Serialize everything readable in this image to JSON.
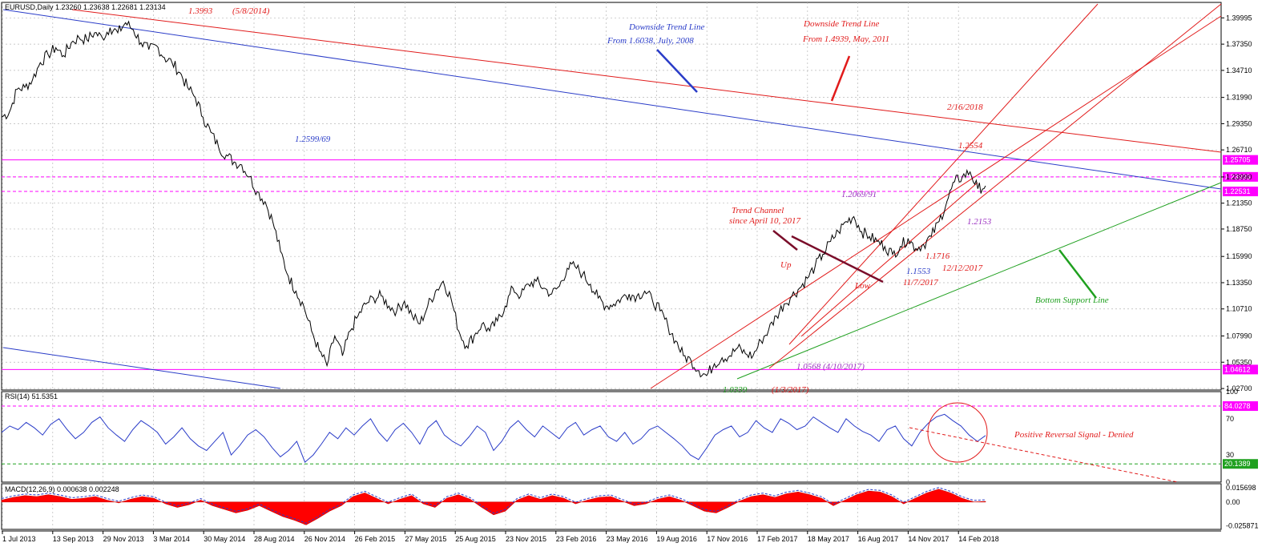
{
  "chart_data": [
    {
      "type": "line",
      "panel": "price",
      "header": "EURUSD,Daily  1.23260 1.23638 1.22681 1.23134",
      "ylim": [
        1.0255,
        1.4155
      ],
      "y_ticks": [
        "1.39995",
        "1.37350",
        "1.34710",
        "1.31990",
        "1.29350",
        "1.26710",
        "1.23990",
        "1.21350",
        "1.18750",
        "1.15990",
        "1.13350",
        "1.10710",
        "1.07990",
        "1.05350",
        "1.02700"
      ],
      "x_ticks": [
        "1 Jul 2013",
        "13 Sep 2013",
        "29 Nov 2013",
        "3 Mar 2014",
        "30 May 2014",
        "28 Aug 2014",
        "26 Nov 2014",
        "26 Feb 2015",
        "27 May 2015",
        "25 Aug 2015",
        "23 Nov 2015",
        "23 Feb 2016",
        "23 May 2016",
        "19 Aug 2016",
        "17 Nov 2016",
        "17 Feb 2017",
        "18 May 2017",
        "16 Aug 2017",
        "14 Nov 2017",
        "14 Feb 2018"
      ],
      "series": [
        {
          "values": [
            1.3,
            1.305,
            1.328,
            1.33,
            1.338,
            1.355,
            1.363,
            1.37,
            1.362,
            1.375,
            1.38,
            1.378,
            1.385,
            1.38,
            1.39,
            1.385,
            1.395,
            1.388,
            1.375,
            1.368,
            1.372,
            1.36,
            1.355,
            1.345,
            1.33,
            1.32,
            1.3,
            1.285,
            1.27,
            1.262,
            1.255,
            1.252,
            1.24,
            1.225,
            1.215,
            1.195,
            1.165,
            1.14,
            1.125,
            1.11,
            1.085,
            1.065,
            1.05,
            1.08,
            1.06,
            1.085,
            1.1,
            1.112,
            1.118,
            1.12,
            1.11,
            1.105,
            1.115,
            1.1,
            1.092,
            1.11,
            1.125,
            1.135,
            1.118,
            1.085,
            1.07,
            1.08,
            1.092,
            1.085,
            1.095,
            1.11,
            1.128,
            1.12,
            1.132,
            1.135,
            1.128,
            1.122,
            1.13,
            1.148,
            1.15,
            1.142,
            1.132,
            1.118,
            1.11,
            1.112,
            1.118,
            1.122,
            1.12,
            1.125,
            1.116,
            1.105,
            1.09,
            1.075,
            1.06,
            1.055,
            1.045,
            1.04,
            1.052,
            1.058,
            1.06,
            1.068,
            1.062,
            1.06,
            1.075,
            1.086,
            1.1,
            1.112,
            1.12,
            1.128,
            1.138,
            1.15,
            1.162,
            1.175,
            1.185,
            1.195,
            1.2,
            1.185,
            1.18,
            1.175,
            1.17,
            1.162,
            1.17,
            1.178,
            1.168,
            1.172,
            1.18,
            1.195,
            1.215,
            1.235,
            1.24,
            1.245,
            1.228,
            1.231
          ]
        },
        {
          "name": "",
          "values": [
            1.045,
            1.3993
          ]
        }
      ],
      "hlines": [
        {
          "label": "1.25705",
          "value": 1.25705,
          "color": "#ff00ff",
          "style": "solid"
        },
        {
          "label": "1.23996",
          "value": 1.23996,
          "color": "#ff00ff",
          "style": "dashed"
        },
        {
          "label": "1.22531",
          "value": 1.22531,
          "color": "#ff00ff",
          "style": "dashed"
        },
        {
          "label": "1.04612",
          "value": 1.04612,
          "color": "#ff00ff",
          "style": "solid"
        }
      ],
      "annotations": [
        {
          "text": "1.3993",
          "color": "#e11b1b"
        },
        {
          "text": "(5/8/2014)",
          "color": "#e11b1b"
        },
        {
          "text": "Downside Trend Line",
          "color": "#2a3cc8"
        },
        {
          "text": "From 1.6038, July, 2008",
          "color": "#2a3cc8"
        },
        {
          "text": "Downside Trend Line",
          "color": "#e11b1b"
        },
        {
          "text": "From 1.4939, May, 2011",
          "color": "#e11b1b"
        },
        {
          "text": "2/16/2018",
          "color": "#e11b1b"
        },
        {
          "text": "1.2599/69",
          "color": "#2a3cc8"
        },
        {
          "text": "1.2554",
          "color": "#e11b1b"
        },
        {
          "text": "1.2069/91",
          "color": "#9b30c0"
        },
        {
          "text": "Trend Channel",
          "color": "#e11b1b"
        },
        {
          "text": "since April 10, 2017",
          "color": "#e11b1b"
        },
        {
          "text": "Up",
          "color": "#e11b1b"
        },
        {
          "text": "Low",
          "color": "#e11b1b"
        },
        {
          "text": "1.2153",
          "color": "#9b30c0"
        },
        {
          "text": "1.1716",
          "color": "#e11b1b"
        },
        {
          "text": "12/12/2017",
          "color": "#e11b1b"
        },
        {
          "text": "1.1553",
          "color": "#2a3cc8"
        },
        {
          "text": "11/7/2017",
          "color": "#e11b1b"
        },
        {
          "text": "Bottom Support Line",
          "color": "#1fa01f"
        },
        {
          "text": "1.0568 (4/10/2017)",
          "color": "#9b30c0"
        },
        {
          "text": "1.0339",
          "color": "#1fa01f"
        },
        {
          "text": "(1/3/2017)",
          "color": "#e11b1b"
        }
      ],
      "grid": true
    },
    {
      "type": "line",
      "panel": "rsi",
      "header": "RSI(14) 51.5351",
      "ylim": [
        0,
        100
      ],
      "y_ticks": [
        "100",
        "70",
        "30",
        "0"
      ],
      "levels": [
        {
          "label": "84.0278",
          "value": 84.0278
        },
        {
          "label": "20.1389",
          "value": 20.1389
        }
      ],
      "series": [
        {
          "values": [
            55,
            62,
            58,
            66,
            60,
            52,
            64,
            70,
            58,
            48,
            55,
            66,
            72,
            60,
            52,
            45,
            58,
            68,
            62,
            55,
            42,
            50,
            60,
            48,
            40,
            35,
            45,
            55,
            30,
            40,
            52,
            58,
            50,
            38,
            28,
            35,
            45,
            22,
            30,
            42,
            55,
            48,
            60,
            52,
            62,
            70,
            55,
            45,
            58,
            65,
            55,
            42,
            60,
            68,
            52,
            45,
            40,
            50,
            62,
            55,
            35,
            45,
            60,
            68,
            58,
            50,
            62,
            55,
            48,
            60,
            66,
            52,
            58,
            62,
            50,
            45,
            55,
            42,
            48,
            58,
            62,
            55,
            48,
            40,
            30,
            25,
            38,
            52,
            58,
            62,
            50,
            55,
            68,
            60,
            55,
            70,
            65,
            58,
            62,
            72,
            66,
            60,
            55,
            70,
            62,
            56,
            52,
            45,
            58,
            62,
            48,
            40,
            55,
            65,
            72,
            75,
            68,
            62,
            52,
            45,
            51.5
          ]
        }
      ],
      "annotations": [
        {
          "text": "Positive Reversal Signal - Denied",
          "color": "#e11b1b"
        }
      ]
    },
    {
      "type": "area",
      "panel": "macd",
      "header": "MACD(12,26,9) 0.000638 0.002248",
      "y_ticks": [
        "0.015698",
        "0.00",
        "-0.025871"
      ],
      "ylim": [
        -0.03,
        0.02
      ],
      "series": [
        {
          "values": [
            0.002,
            0.005,
            0.007,
            0.006,
            0.008,
            0.006,
            0.003,
            0.004,
            0.006,
            0.002,
            -0.001,
            0.003,
            0.006,
            0.004,
            -0.002,
            -0.006,
            -0.003,
            0.002,
            -0.004,
            -0.008,
            -0.012,
            -0.009,
            -0.004,
            -0.01,
            -0.016,
            -0.02,
            -0.025,
            -0.018,
            -0.01,
            -0.004,
            0.006,
            0.01,
            0.004,
            -0.002,
            0.003,
            0.007,
            -0.002,
            -0.006,
            0.004,
            0.008,
            0.003,
            -0.006,
            -0.014,
            -0.01,
            0.002,
            0.007,
            0.003,
            0.007,
            0.004,
            -0.002,
            0.002,
            0.005,
            0.006,
            0.001,
            -0.004,
            -0.002,
            0.003,
            0.006,
            0.002,
            -0.004,
            -0.01,
            -0.012,
            -0.006,
            0.001,
            0.006,
            0.008,
            0.005,
            0.009,
            0.011,
            0.008,
            0.004,
            -0.004,
            0.002,
            0.008,
            0.012,
            0.011,
            0.006,
            -0.002,
            0.004,
            0.01,
            0.014,
            0.01,
            0.004,
            0.0,
            0.0006
          ]
        }
      ]
    }
  ]
}
